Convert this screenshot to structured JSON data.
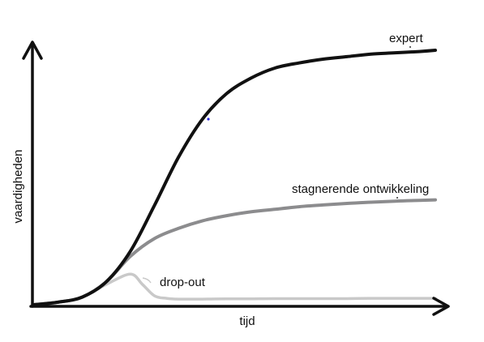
{
  "chart_data": {
    "type": "line",
    "title": "",
    "xlabel": "tijd",
    "ylabel": "vaardigheden",
    "xlim": [
      0,
      100
    ],
    "ylim": [
      0,
      100
    ],
    "grid": false,
    "legend": "none",
    "series": [
      {
        "name": "expert",
        "color": "#111111",
        "x": [
          0,
          6,
          12,
          18,
          24,
          30,
          36,
          42,
          48,
          54,
          60,
          66,
          72,
          78,
          84,
          90,
          96,
          100
        ],
        "y": [
          0,
          1,
          3,
          9,
          21,
          39,
          58,
          73,
          83,
          89,
          93,
          95,
          96.5,
          97.5,
          98.5,
          99,
          99.5,
          100
        ]
      },
      {
        "name": "stagnerende ontwikkeling",
        "color": "#8c8c8e",
        "x": [
          0,
          6,
          12,
          18,
          24,
          30,
          36,
          42,
          48,
          54,
          60,
          66,
          72,
          78,
          84,
          90,
          96,
          100
        ],
        "y": [
          0,
          1,
          3,
          9,
          19,
          26,
          30,
          33,
          35,
          36.5,
          37.5,
          38.5,
          39.2,
          39.8,
          40.3,
          40.7,
          41,
          41.2
        ]
      },
      {
        "name": "drop-out",
        "color": "#c9c9c9",
        "x": [
          0,
          6,
          12,
          18,
          24,
          27,
          30,
          33,
          36,
          42,
          48,
          54,
          60,
          66,
          72,
          78,
          84,
          90,
          96,
          100
        ],
        "y": [
          0,
          1,
          3,
          8,
          12,
          8,
          3.5,
          2.5,
          2.2,
          2.2,
          2.3,
          2.3,
          2.4,
          2.4,
          2.4,
          2.4,
          2.5,
          2.5,
          2.5,
          2.5
        ]
      }
    ],
    "annotations": [
      {
        "text": "expert",
        "series": 0
      },
      {
        "text": "stagnerende ontwikkeling",
        "series": 1
      },
      {
        "text": "drop-out",
        "series": 2
      }
    ]
  }
}
